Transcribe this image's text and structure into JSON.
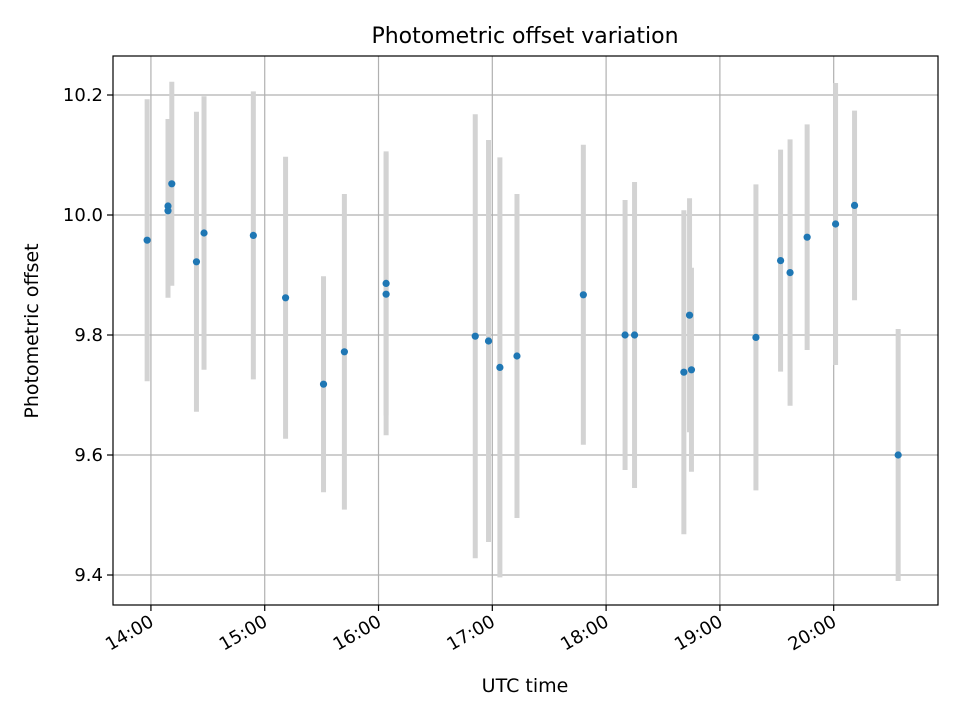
{
  "chart_data": {
    "type": "scatter",
    "title": "Photometric offset variation",
    "xlabel": "UTC time",
    "ylabel": "Photometric offset",
    "x_unit": "UTC time (HH:MM)",
    "xlim": [
      "13:40",
      "20:55"
    ],
    "ylim": [
      9.35,
      10.265
    ],
    "x_ticks": [
      "14:00",
      "15:00",
      "16:00",
      "17:00",
      "18:00",
      "19:00",
      "20:00"
    ],
    "y_ticks": [
      "9.4",
      "9.6",
      "9.8",
      "10.0",
      "10.2"
    ],
    "grid": true,
    "legend": "none",
    "colors": {
      "point": "#1f77b4",
      "errorbar": "#d3d3d3",
      "grid": "#b0b0b0"
    },
    "series": [
      {
        "points": [
          {
            "x": "13:58",
            "y": 9.958,
            "err": 0.235
          },
          {
            "x": "14:09",
            "y": 10.015,
            "err": 0.145
          },
          {
            "x": "14:09",
            "y": 10.007,
            "err": 0.145
          },
          {
            "x": "14:11",
            "y": 10.052,
            "err": 0.17
          },
          {
            "x": "14:24",
            "y": 9.922,
            "err": 0.25
          },
          {
            "x": "14:28",
            "y": 9.97,
            "err": 0.228
          },
          {
            "x": "14:54",
            "y": 9.966,
            "err": 0.24
          },
          {
            "x": "15:11",
            "y": 9.862,
            "err": 0.235
          },
          {
            "x": "15:31",
            "y": 9.718,
            "err": 0.18
          },
          {
            "x": "15:42",
            "y": 9.772,
            "err": 0.263
          },
          {
            "x": "16:04",
            "y": 9.886,
            "err": 0.22
          },
          {
            "x": "16:04",
            "y": 9.868,
            "err": 0.235
          },
          {
            "x": "16:51",
            "y": 9.798,
            "err": 0.37
          },
          {
            "x": "16:58",
            "y": 9.79,
            "err": 0.335
          },
          {
            "x": "17:04",
            "y": 9.746,
            "err": 0.35
          },
          {
            "x": "17:13",
            "y": 9.765,
            "err": 0.27
          },
          {
            "x": "17:48",
            "y": 9.867,
            "err": 0.25
          },
          {
            "x": "18:10",
            "y": 9.8,
            "err": 0.225
          },
          {
            "x": "18:15",
            "y": 9.8,
            "err": 0.255
          },
          {
            "x": "18:41",
            "y": 9.738,
            "err": 0.27
          },
          {
            "x": "18:44",
            "y": 9.833,
            "err": 0.195
          },
          {
            "x": "18:45",
            "y": 9.742,
            "err": 0.17
          },
          {
            "x": "19:19",
            "y": 9.796,
            "err": 0.255
          },
          {
            "x": "19:32",
            "y": 9.924,
            "err": 0.185
          },
          {
            "x": "19:37",
            "y": 9.904,
            "err": 0.222
          },
          {
            "x": "19:46",
            "y": 9.963,
            "err": 0.188
          },
          {
            "x": "20:01",
            "y": 9.985,
            "err": 0.235
          },
          {
            "x": "20:11",
            "y": 10.016,
            "err": 0.158
          },
          {
            "x": "20:34",
            "y": 9.6,
            "err": 0.21
          }
        ]
      }
    ]
  }
}
